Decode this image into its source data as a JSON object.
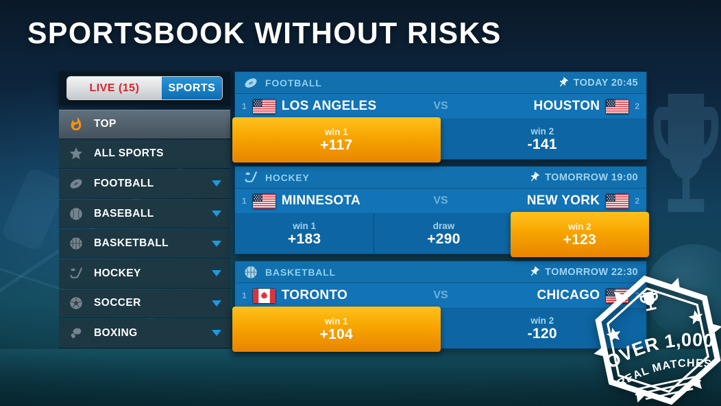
{
  "page": {
    "title": "SPORTSBOOK WITHOUT RISKS"
  },
  "sidebar": {
    "tabs": [
      {
        "label": "LIVE (15)",
        "active": false
      },
      {
        "label": "SPORTS",
        "active": true
      }
    ],
    "items": [
      {
        "label": "TOP",
        "icon": "flame-icon",
        "active": true,
        "expandable": false
      },
      {
        "label": "ALL SPORTS",
        "icon": "star-icon",
        "active": false,
        "expandable": false
      },
      {
        "label": "FOOTBALL",
        "icon": "football-icon",
        "active": false,
        "expandable": true
      },
      {
        "label": "BASEBALL",
        "icon": "baseball-icon",
        "active": false,
        "expandable": true
      },
      {
        "label": "BASKETBALL",
        "icon": "basketball-icon",
        "active": false,
        "expandable": true
      },
      {
        "label": "HOCKEY",
        "icon": "hockey-icon",
        "active": false,
        "expandable": true
      },
      {
        "label": "SOCCER",
        "icon": "soccer-icon",
        "active": false,
        "expandable": true
      },
      {
        "label": "BOXING",
        "icon": "boxing-icon",
        "active": false,
        "expandable": true
      }
    ]
  },
  "ui": {
    "vs": "VS"
  },
  "matches": [
    {
      "sport": "FOOTBALL",
      "icon": "football-icon",
      "time": "TODAY 20:45",
      "home": {
        "num": "1",
        "name": "LOS ANGELES",
        "flag": "us"
      },
      "away": {
        "num": "2",
        "name": "HOUSTON",
        "flag": "us"
      },
      "odds": [
        {
          "label": "win 1",
          "value": "+117",
          "highlight": true
        },
        {
          "label": "win 2",
          "value": "-141",
          "highlight": false
        }
      ]
    },
    {
      "sport": "HOCKEY",
      "icon": "hockey-icon",
      "time": "TOMORROW 19:00",
      "home": {
        "num": "1",
        "name": "MINNESOTA",
        "flag": "us"
      },
      "away": {
        "num": "2",
        "name": "NEW YORK",
        "flag": "us"
      },
      "odds": [
        {
          "label": "win 1",
          "value": "+183",
          "highlight": false
        },
        {
          "label": "draw",
          "value": "+290",
          "highlight": false
        },
        {
          "label": "win 2",
          "value": "+123",
          "highlight": true
        }
      ]
    },
    {
      "sport": "BASKETBALL",
      "icon": "basketball-icon",
      "time": "TOMORROW 22:30",
      "home": {
        "num": "1",
        "name": "TORONTO",
        "flag": "ca"
      },
      "away": {
        "num": "2",
        "name": "CHICAGO",
        "flag": "us"
      },
      "odds": [
        {
          "label": "win 1",
          "value": "+104",
          "highlight": true
        },
        {
          "label": "win 2",
          "value": "-120",
          "highlight": false
        }
      ]
    }
  ],
  "badge": {
    "line1": "OVER 1,000",
    "line2": "REAL MATCHES"
  },
  "colors": {
    "accent_orange": "#f7a400",
    "card_blue": "#1273b6",
    "odds_blue": "#0d66a3",
    "live_red": "#d6262c",
    "tab_blue": "#1a82c4",
    "light_blue_text": "#8fd0f0",
    "sidebar_row": "#1d3743"
  }
}
